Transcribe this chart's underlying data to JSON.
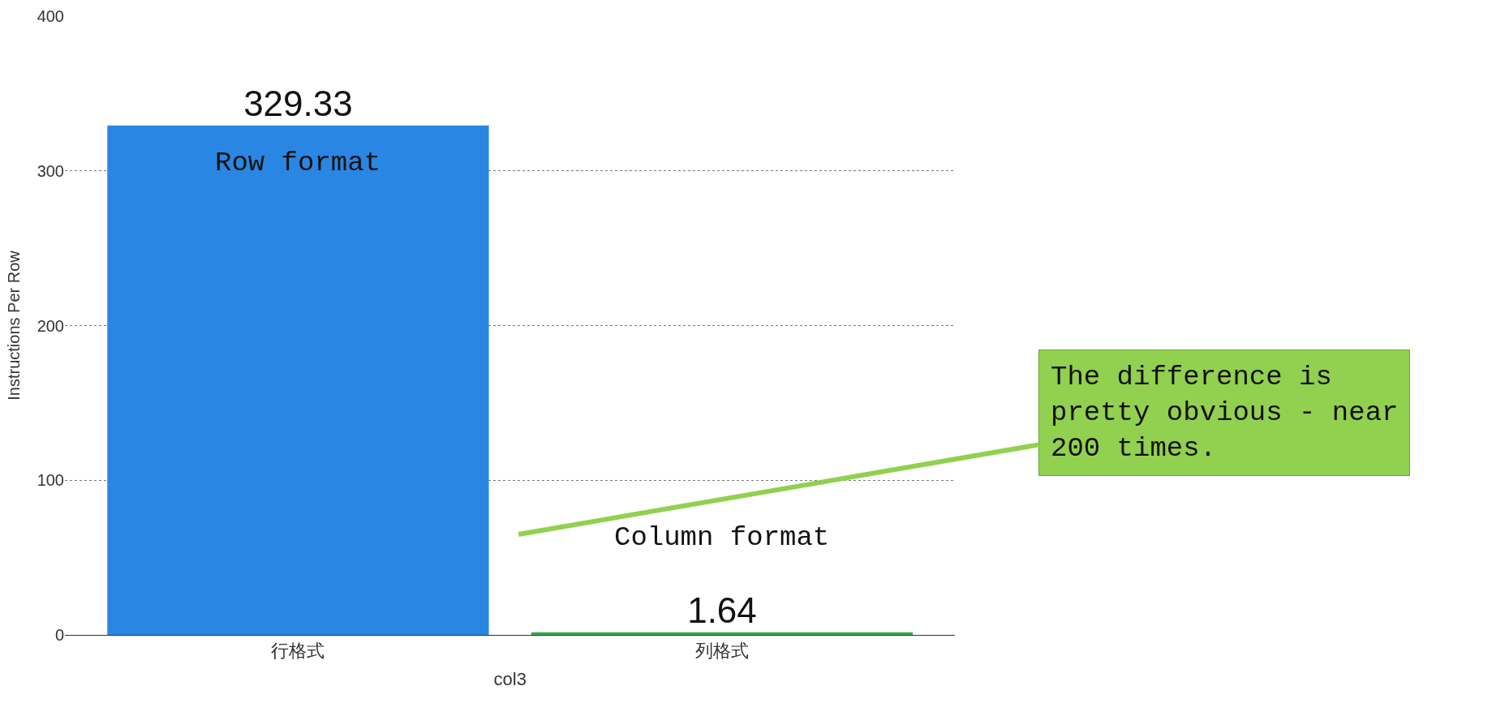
{
  "chart_data": {
    "type": "bar",
    "categories": [
      "行格式",
      "列格式"
    ],
    "values": [
      329.33,
      1.64
    ],
    "colors": [
      "#2a86e3",
      "#3aa64a"
    ],
    "xlabel": "col3",
    "ylabel": "Instructions Per Row",
    "ylim": [
      0,
      400
    ],
    "yticks": [
      0,
      100,
      200,
      300,
      400
    ],
    "grid": "y",
    "data_labels": true,
    "annotations": [
      "Row format",
      "Column format",
      "The difference is pretty obvious - near 200 times."
    ]
  }
}
